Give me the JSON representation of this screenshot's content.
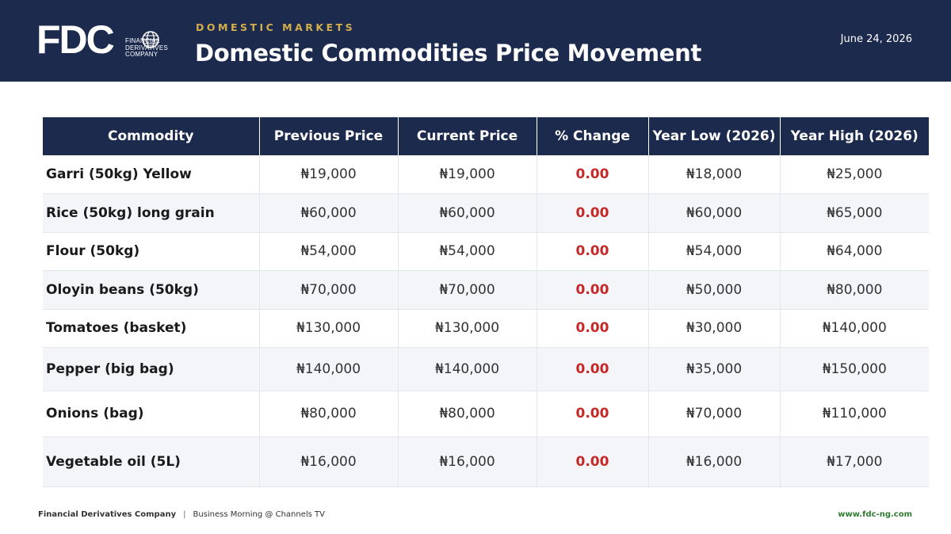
{
  "header": {
    "logo": {
      "letters": "FDC",
      "company_lines": [
        "FINANCIAL",
        "DERIVATIVES",
        "COMPANY"
      ]
    },
    "section_label": "DOMESTIC MARKETS",
    "title": "Domestic Commodities Price Movement",
    "date": "June 24, 2026",
    "colors": {
      "navy": "#1c2a4e",
      "gold": "#d3ae4c",
      "change_red": "#c62828",
      "link_green": "#2e7d32"
    }
  },
  "table": {
    "columns": [
      "Commodity",
      "Previous Price",
      "Current Price",
      "% Change",
      "Year Low (2026)",
      "Year High (2026)"
    ],
    "rows": [
      [
        "Garri (50kg) Yellow",
        "₦19,000",
        "₦19,000",
        "0.00",
        "₦18,000",
        "₦25,000"
      ],
      [
        "Rice (50kg) long grain",
        "₦60,000",
        "₦60,000",
        "0.00",
        "₦60,000",
        "₦65,000"
      ],
      [
        "Flour (50kg)",
        "₦54,000",
        "₦54,000",
        "0.00",
        "₦54,000",
        "₦64,000"
      ],
      [
        "Oloyin beans (50kg)",
        "₦70,000",
        "₦70,000",
        "0.00",
        "₦50,000",
        "₦80,000"
      ],
      [
        "Tomatoes (basket)",
        "₦130,000",
        "₦130,000",
        "0.00",
        "₦30,000",
        "₦140,000"
      ],
      [
        "Pepper (big bag)",
        "₦140,000",
        "₦140,000",
        "0.00",
        "₦35,000",
        "₦150,000"
      ],
      [
        "Onions (bag)",
        "₦80,000",
        "₦80,000",
        "0.00",
        "₦70,000",
        "₦110,000"
      ],
      [
        "Vegetable oil (5L)",
        "₦16,000",
        "₦16,000",
        "0.00",
        "₦16,000",
        "₦17,000"
      ]
    ]
  },
  "footer": {
    "company": "Financial Derivatives Company",
    "separator": "|",
    "program": "Business Morning @ Channels TV",
    "website": "www.fdc-ng.com"
  }
}
